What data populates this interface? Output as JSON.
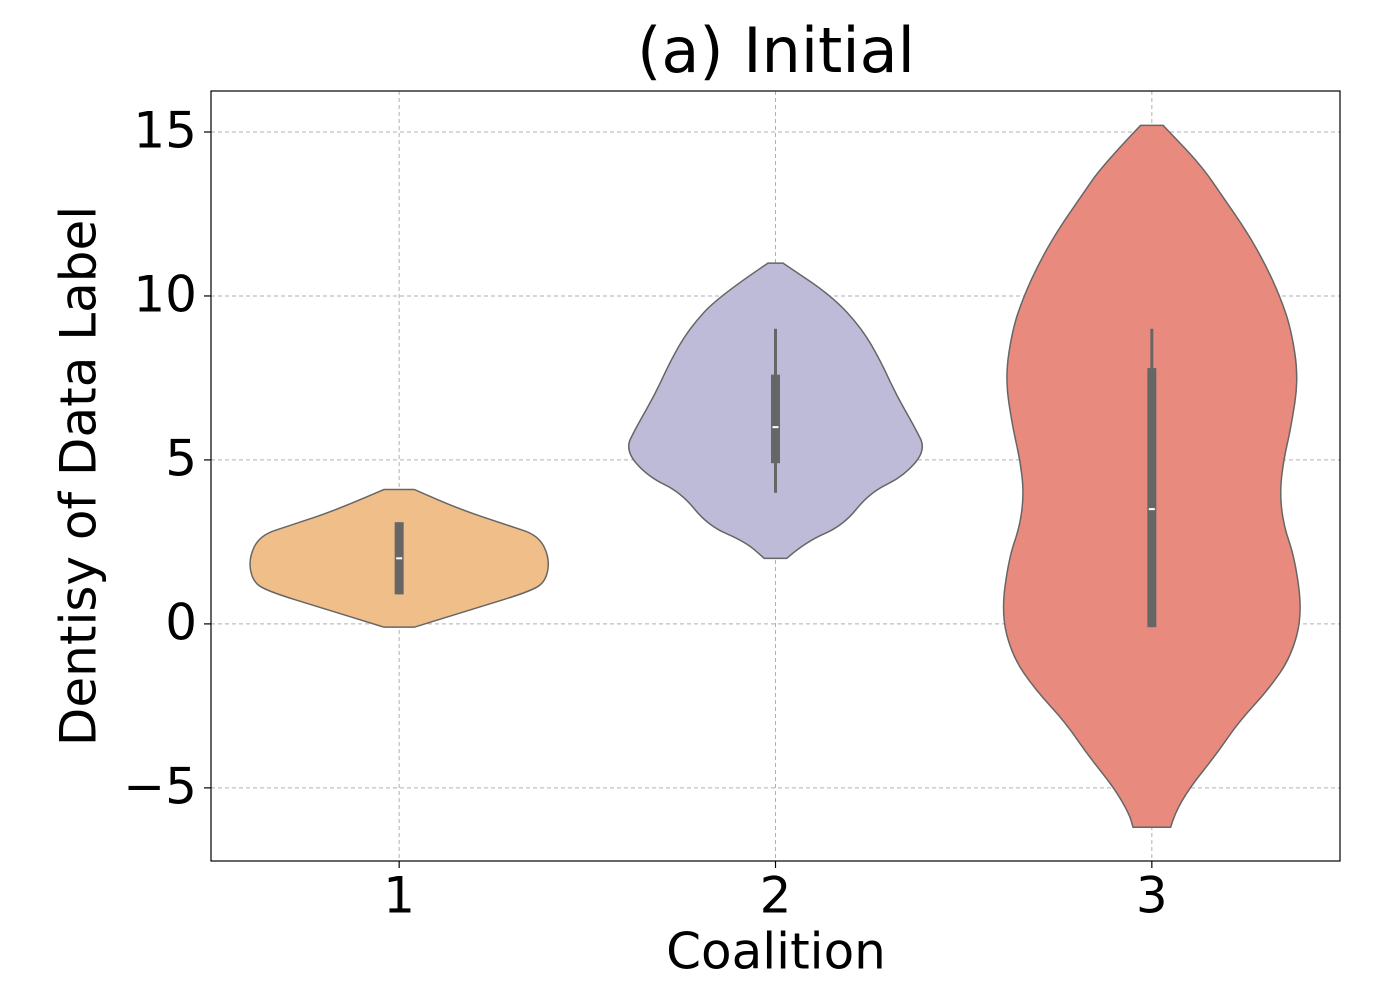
{
  "chart_data": {
    "type": "violin",
    "title": "(a) Initial",
    "x_label": "Coalition",
    "y_label": "Dentisy of Data Label",
    "categories": [
      "1",
      "2",
      "3"
    ],
    "ylim": [
      -7.23,
      16.25
    ],
    "yticks": [
      {
        "value": -5,
        "label": "−5"
      },
      0,
      5,
      10,
      15
    ],
    "grid": true,
    "edge_color": "#666666",
    "violins": [
      {
        "color": "#f0bf89",
        "density": {
          "y": [
            -0.1,
            0.5,
            1,
            1.3,
            2,
            2.7,
            3,
            3.5,
            4.1
          ],
          "width": [
            0.04,
            0.21,
            0.35,
            0.39,
            0.4,
            0.37,
            0.29,
            0.16,
            0.04
          ]
        },
        "quartiles": [
          0.9,
          2,
          3.1
        ],
        "whiskers": [
          0.9,
          3.1
        ]
      },
      {
        "color": "#bebbd8",
        "density": {
          "y": [
            2,
            2.5,
            3,
            4,
            4.5,
            5.3,
            6,
            7,
            8,
            9,
            10,
            11
          ],
          "width": [
            0.03,
            0.08,
            0.18,
            0.25,
            0.34,
            0.4,
            0.37,
            0.32,
            0.28,
            0.23,
            0.15,
            0.02
          ]
        },
        "quartiles": [
          4.9,
          6,
          7.6
        ],
        "whiskers": [
          4,
          9
        ]
      },
      {
        "color": "#e88b7e",
        "density": {
          "y": [
            -6.2,
            -5.8,
            -5,
            -4,
            -3,
            -2,
            -1,
            0.3,
            2,
            3,
            4,
            5,
            6,
            7.5,
            9,
            10,
            11,
            12,
            13,
            14,
            15.2
          ],
          "width": [
            0.05,
            0.06,
            0.1,
            0.17,
            0.23,
            0.31,
            0.37,
            0.4,
            0.38,
            0.35,
            0.34,
            0.35,
            0.37,
            0.39,
            0.37,
            0.34,
            0.3,
            0.25,
            0.19,
            0.13,
            0.03
          ]
        },
        "quartiles": [
          -0.1,
          3.5,
          7.8
        ],
        "whiskers": [
          -0.1,
          9
        ]
      }
    ]
  }
}
